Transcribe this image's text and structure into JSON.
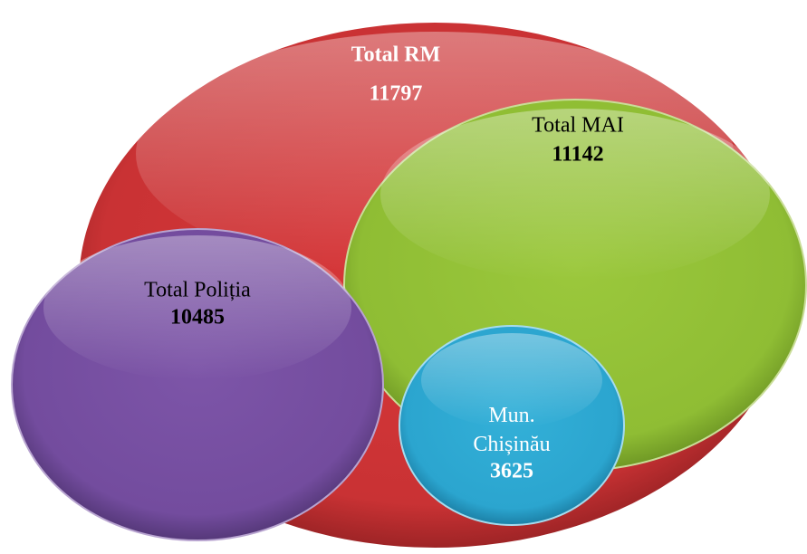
{
  "nodes": [
    {
      "label": "Total RM",
      "value": "11797"
    },
    {
      "label": "Total MAI",
      "value": "11142"
    },
    {
      "label": "Total Poliția",
      "value": "10485"
    },
    {
      "label": "Mun. Chișinău",
      "value": "3625"
    }
  ]
}
